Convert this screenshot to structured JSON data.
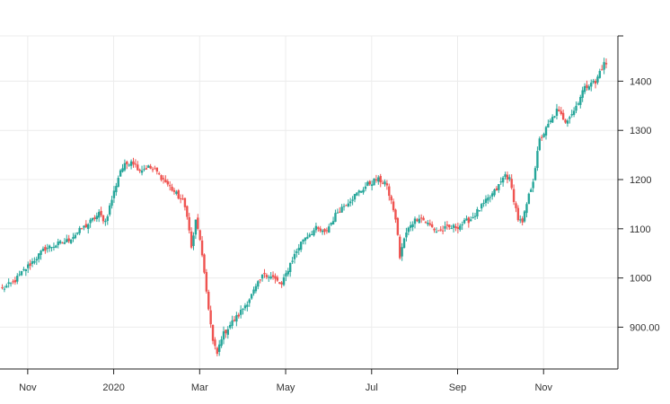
{
  "chart_data": {
    "type": "candlestick",
    "title": "",
    "xlabel": "",
    "ylabel": "",
    "ylim": [
      815,
      1492
    ],
    "grid": true,
    "legend": "none",
    "y_axis_position": "right",
    "colors": {
      "up": "#26a69a",
      "down": "#ef5350",
      "grid": "#ececec",
      "axis": "#222222",
      "text": "#333333"
    },
    "x_ticks": [
      {
        "label": "Nov",
        "index": 6
      },
      {
        "label": "2020",
        "index": 46
      },
      {
        "label": "Mar",
        "index": 86
      },
      {
        "label": "May",
        "index": 126
      },
      {
        "label": "Jul",
        "index": 166
      },
      {
        "label": "Sep",
        "index": 206
      },
      {
        "label": "Nov",
        "index": 246
      }
    ],
    "y_ticks": [
      {
        "label": "900.00",
        "value": 900
      },
      {
        "label": "1000",
        "value": 1000
      },
      {
        "label": "1100",
        "value": 1100
      },
      {
        "label": "1200",
        "value": 1200
      },
      {
        "label": "1300",
        "value": 1300
      },
      {
        "label": "1400",
        "value": 1400
      }
    ],
    "close_anchors": [
      [
        0,
        978
      ],
      [
        5,
        990
      ],
      [
        10,
        1015
      ],
      [
        20,
        1060
      ],
      [
        30,
        1075
      ],
      [
        40,
        1110
      ],
      [
        45,
        1130
      ],
      [
        48,
        1115
      ],
      [
        55,
        1220
      ],
      [
        60,
        1240
      ],
      [
        64,
        1220
      ],
      [
        68,
        1225
      ],
      [
        72,
        1215
      ],
      [
        76,
        1195
      ],
      [
        80,
        1175
      ],
      [
        84,
        1155
      ],
      [
        86,
        1130
      ],
      [
        88,
        1060
      ],
      [
        90,
        1115
      ],
      [
        92,
        1080
      ],
      [
        94,
        1005
      ],
      [
        96,
        940
      ],
      [
        98,
        870
      ],
      [
        100,
        845
      ],
      [
        102,
        880
      ],
      [
        106,
        905
      ],
      [
        110,
        925
      ],
      [
        116,
        965
      ],
      [
        122,
        1010
      ],
      [
        126,
        1000
      ],
      [
        130,
        985
      ],
      [
        134,
        1030
      ],
      [
        140,
        1080
      ],
      [
        146,
        1100
      ],
      [
        150,
        1090
      ],
      [
        156,
        1135
      ],
      [
        162,
        1160
      ],
      [
        166,
        1175
      ],
      [
        170,
        1190
      ],
      [
        174,
        1200
      ],
      [
        178,
        1195
      ],
      [
        180,
        1170
      ],
      [
        182,
        1140
      ],
      [
        184,
        1090
      ],
      [
        185,
        1040
      ],
      [
        187,
        1080
      ],
      [
        190,
        1110
      ],
      [
        194,
        1125
      ],
      [
        198,
        1110
      ],
      [
        202,
        1095
      ],
      [
        206,
        1100
      ],
      [
        212,
        1105
      ],
      [
        218,
        1120
      ],
      [
        224,
        1150
      ],
      [
        230,
        1180
      ],
      [
        234,
        1210
      ],
      [
        236,
        1200
      ],
      [
        238,
        1160
      ],
      [
        240,
        1120
      ],
      [
        242,
        1110
      ],
      [
        244,
        1150
      ],
      [
        247,
        1200
      ],
      [
        250,
        1280
      ],
      [
        254,
        1310
      ],
      [
        258,
        1340
      ],
      [
        262,
        1320
      ],
      [
        266,
        1340
      ],
      [
        270,
        1380
      ],
      [
        274,
        1400
      ],
      [
        276,
        1395
      ],
      [
        278,
        1420
      ],
      [
        280,
        1435
      ]
    ]
  }
}
